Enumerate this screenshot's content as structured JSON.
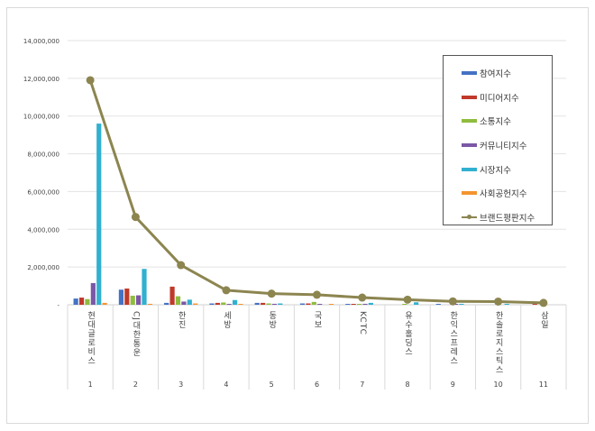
{
  "chart_data": {
    "type": "bar",
    "title": "",
    "xlabel": "",
    "ylabel": "",
    "ylim": [
      0,
      14000000
    ],
    "yticks": [
      0,
      2000000,
      4000000,
      6000000,
      8000000,
      10000000,
      12000000,
      14000000
    ],
    "ytick_labels": [
      "-",
      "2,000,000",
      "4,000,000",
      "6,000,000",
      "8,000,000",
      "10,000,000",
      "12,000,000",
      "14,000,000"
    ],
    "grid": true,
    "legend_position": "top-right",
    "categories": [
      "현대글로비스",
      "CJ대한통운",
      "한진",
      "세방",
      "동방",
      "국보",
      "KCTC",
      "유수홀딩스",
      "한익스프레스",
      "한솔로지스틱스",
      "삼일"
    ],
    "ranks": [
      "1",
      "2",
      "3",
      "4",
      "5",
      "6",
      "7",
      "8",
      "9",
      "10",
      "11"
    ],
    "series": [
      {
        "name": "참여지수",
        "type": "bar",
        "color": "#4472c4",
        "values": [
          330000,
          800000,
          100000,
          70000,
          100000,
          70000,
          20000,
          0,
          10000,
          0,
          0
        ]
      },
      {
        "name": "미디어지수",
        "type": "bar",
        "color": "#c0392b",
        "values": [
          380000,
          860000,
          960000,
          100000,
          100000,
          70000,
          20000,
          0,
          0,
          0,
          30000
        ]
      },
      {
        "name": "소통지수",
        "type": "bar",
        "color": "#8fbc3f",
        "values": [
          300000,
          480000,
          450000,
          120000,
          70000,
          150000,
          30000,
          20000,
          0,
          0,
          0
        ]
      },
      {
        "name": "커뮤니티지수",
        "type": "bar",
        "color": "#7b57a6",
        "values": [
          1150000,
          500000,
          170000,
          40000,
          50000,
          30000,
          50000,
          0,
          10000,
          0,
          0
        ]
      },
      {
        "name": "시장지수",
        "type": "bar",
        "color": "#31b0d0",
        "values": [
          9600000,
          1900000,
          270000,
          250000,
          70000,
          0,
          100000,
          130000,
          50000,
          50000,
          0
        ]
      },
      {
        "name": "사회공헌지수",
        "type": "bar",
        "color": "#f39530",
        "values": [
          100000,
          50000,
          70000,
          30000,
          0,
          40000,
          0,
          0,
          0,
          0,
          0
        ]
      },
      {
        "name": "브랜드평판지수",
        "type": "line",
        "color": "#8c8550",
        "values": [
          11900000,
          4650000,
          2100000,
          770000,
          590000,
          530000,
          380000,
          270000,
          180000,
          170000,
          100000
        ]
      }
    ]
  }
}
